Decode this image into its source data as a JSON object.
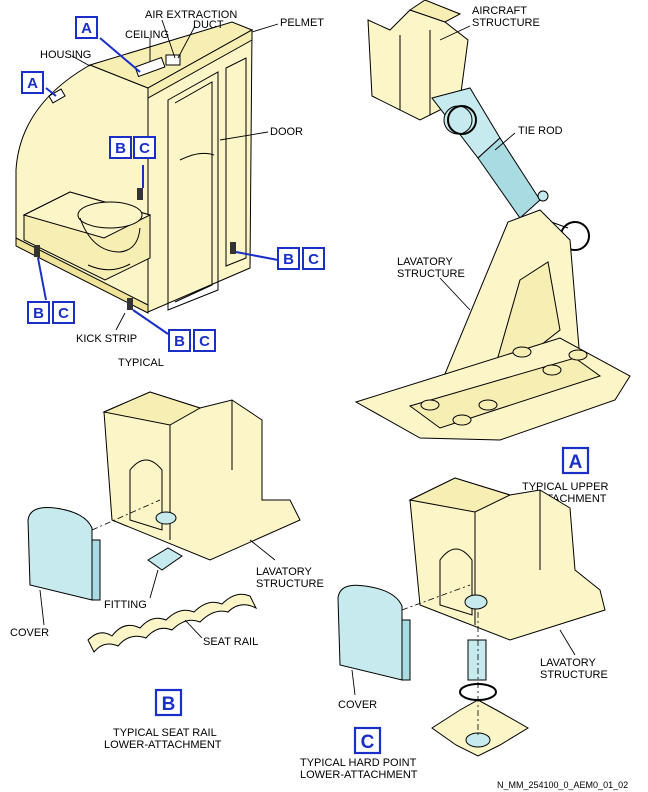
{
  "labels": {
    "air_extraction": "AIR EXTRACTION",
    "duct": "DUCT",
    "ceiling": "CEILING",
    "pelmet": "PELMET",
    "housing": "HOUSING",
    "door": "DOOR",
    "kick_strip": "KICK STRIP",
    "typical": "TYPICAL",
    "aircraft": "AIRCRAFT",
    "structure": "STRUCTURE",
    "tie_rod": "TIE ROD",
    "lavatory": "LAVATORY",
    "typical_upper": "TYPICAL UPPER",
    "attachment": "ATTACHMENT",
    "fitting": "FITTING",
    "cover": "COVER",
    "seat_rail": "SEAT RAIL",
    "typical_seat_rail": "TYPICAL SEAT RAIL",
    "lower_attachment": "LOWER-ATTACHMENT",
    "typical_hard_point": "TYPICAL HARD POINT",
    "figure_id": "N_MM_254100_0_AEM0_01_02"
  },
  "tags": {
    "a": "A",
    "b": "B",
    "c": "C"
  },
  "colors": {
    "panel": "#fbf5c8",
    "part": "#c7eaee",
    "callout": "#1a2fc8"
  }
}
